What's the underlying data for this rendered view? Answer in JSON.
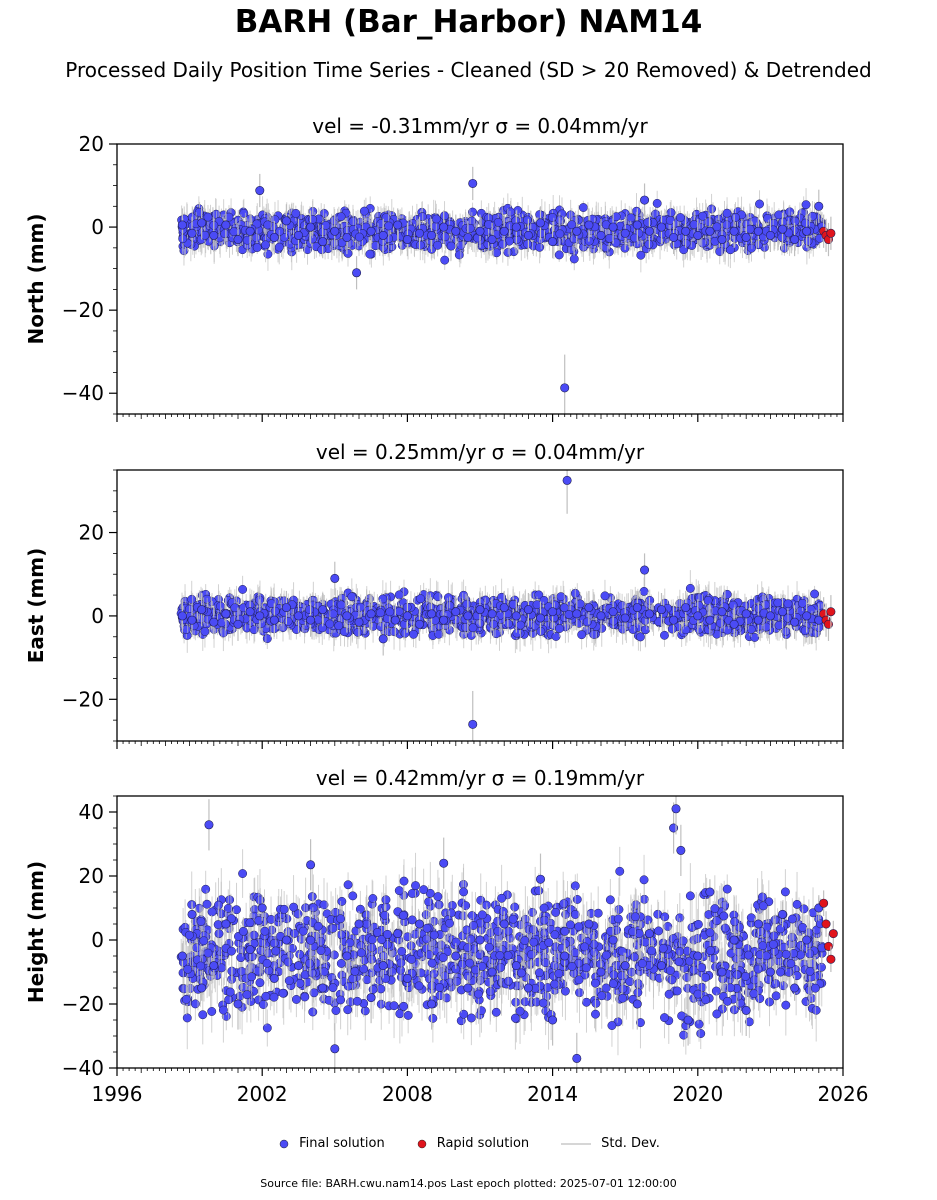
{
  "header": {
    "title": "BARH (Bar_Harbor) NAM14",
    "subtitle": "Processed Daily Position Time Series - Cleaned (SD > 20 Removed) & Detrended"
  },
  "legend": {
    "final": "Final solution",
    "rapid": "Rapid solution",
    "stddev": "Std. Dev."
  },
  "footer": {
    "text": "Source file: BARH.cwu.nam14.pos  Last epoch plotted: 2025-07-01 12:00:00"
  },
  "colors": {
    "final": "#4b4bf5",
    "rapid": "#e0141c",
    "stddev": "#bfbfbf"
  },
  "chart_data": [
    {
      "type": "scatter",
      "title": "vel = -0.31mm/yr   σ = 0.04mm/yr",
      "ylabel": "North (mm)",
      "xlim": [
        1996,
        2026
      ],
      "ylim": [
        -45,
        20
      ],
      "yticks": [
        20,
        0,
        -20,
        -40
      ],
      "series": [
        {
          "name": "Final solution",
          "x": [
            1998.7,
            1999.1,
            1999.5,
            2000.0,
            2000.5,
            2001.0,
            2001.5,
            2001.9,
            2002.5,
            2003.0,
            2003.5,
            2004.0,
            2004.5,
            2005.0,
            2005.5,
            2005.9,
            2006.5,
            2007.0,
            2007.6,
            2008.0,
            2008.5,
            2009.0,
            2009.5,
            2010.0,
            2010.5,
            2010.7,
            2011.0,
            2011.5,
            2012.0,
            2012.5,
            2013.0,
            2013.5,
            2014.0,
            2014.5,
            2015.0,
            2015.5,
            2016.0,
            2016.5,
            2017.0,
            2017.5,
            2017.8,
            2018.0,
            2018.5,
            2019.0,
            2019.5,
            2020.0,
            2020.5,
            2021.0,
            2021.5,
            2022.0,
            2022.5,
            2023.0,
            2023.5,
            2024.0,
            2024.5,
            2025.0
          ],
          "y": [
            0.5,
            -1.5,
            1.0,
            -2.0,
            0.5,
            -3.0,
            -1.0,
            8.8,
            -2.5,
            1.5,
            -2.0,
            0.0,
            -3.5,
            -1.0,
            -2.5,
            -11.0,
            -1.0,
            -2.0,
            0.5,
            -3.0,
            -1.5,
            -2.0,
            0.0,
            -1.0,
            -2.5,
            10.5,
            -1.0,
            -3.0,
            -1.0,
            0.0,
            -2.0,
            1.0,
            -3.5,
            -38.7,
            -1.0,
            0.5,
            -2.0,
            0.0,
            -1.5,
            0.5,
            6.5,
            -1.0,
            0.0,
            -2.5,
            -1.0,
            -2.0,
            -1.0,
            -3.0,
            -1.0,
            -2.5,
            -1.0,
            -2.0,
            -0.5,
            -3.0,
            -1.0,
            5.0
          ]
        },
        {
          "name": "Rapid solution",
          "x": [
            2025.2,
            2025.3,
            2025.4,
            2025.5
          ],
          "y": [
            -1.0,
            -2.0,
            -3.0,
            -1.5
          ]
        }
      ]
    },
    {
      "type": "scatter",
      "title": "vel = 0.25mm/yr   σ = 0.04mm/yr",
      "ylabel": "East (mm)",
      "xlim": [
        1996,
        2026
      ],
      "ylim": [
        -30,
        35
      ],
      "yticks": [
        20,
        0,
        -20
      ],
      "series": [
        {
          "name": "Final solution",
          "x": [
            1998.7,
            1999.1,
            1999.5,
            2000.0,
            2000.5,
            2001.0,
            2001.5,
            2001.9,
            2002.5,
            2003.0,
            2003.5,
            2004.0,
            2004.5,
            2005.0,
            2005.5,
            2006.0,
            2006.5,
            2007.0,
            2007.5,
            2008.0,
            2008.5,
            2009.0,
            2009.5,
            2010.0,
            2010.5,
            2010.7,
            2011.0,
            2011.5,
            2012.0,
            2012.5,
            2013.0,
            2013.5,
            2014.0,
            2014.6,
            2015.0,
            2015.5,
            2016.0,
            2016.5,
            2017.0,
            2017.5,
            2017.8,
            2018.0,
            2018.5,
            2019.0,
            2019.5,
            2020.0,
            2020.5,
            2021.0,
            2021.5,
            2022.0,
            2022.5,
            2023.0,
            2023.5,
            2024.0,
            2024.5,
            2025.0
          ],
          "y": [
            0.0,
            -1.0,
            1.5,
            -1.5,
            0.5,
            -2.0,
            1.0,
            0.0,
            -1.0,
            2.0,
            0.0,
            -1.0,
            1.5,
            9.0,
            0.0,
            -1.5,
            0.5,
            -5.5,
            -1.0,
            0.0,
            -2.0,
            0.5,
            -1.0,
            1.0,
            0.0,
            -26.0,
            1.5,
            0.5,
            2.0,
            0.0,
            1.5,
            -0.5,
            1.0,
            32.5,
            0.5,
            2.0,
            0.0,
            1.0,
            -0.5,
            2.0,
            11.0,
            0.5,
            1.5,
            -1.0,
            2.0,
            0.0,
            -1.0,
            1.0,
            -2.0,
            0.5,
            -1.0,
            0.0,
            1.0,
            -1.5,
            0.0,
            -1.0
          ]
        },
        {
          "name": "Rapid solution",
          "x": [
            2025.2,
            2025.3,
            2025.4,
            2025.5
          ],
          "y": [
            0.5,
            -1.0,
            -2.0,
            1.0
          ]
        }
      ]
    },
    {
      "type": "scatter",
      "title": "vel = 0.42mm/yr   σ = 0.19mm/yr",
      "ylabel": "Height (mm)",
      "xlabel": "",
      "xlim": [
        1996,
        2026
      ],
      "ylim": [
        -40,
        45
      ],
      "yticks": [
        40,
        20,
        0,
        -20,
        -40
      ],
      "xticks": [
        1996,
        2002,
        2008,
        2014,
        2020,
        2026
      ],
      "series": [
        {
          "name": "Final solution",
          "x": [
            1998.7,
            1999.1,
            1999.5,
            1999.8,
            2000.0,
            2000.5,
            2001.0,
            2001.5,
            2002.0,
            2002.5,
            2003.0,
            2003.5,
            2004.0,
            2004.5,
            2005.0,
            2005.5,
            2006.0,
            2006.5,
            2007.0,
            2007.6,
            2008.0,
            2008.5,
            2009.0,
            2009.5,
            2010.0,
            2010.5,
            2011.0,
            2011.5,
            2012.0,
            2012.5,
            2013.0,
            2013.5,
            2014.0,
            2014.5,
            2015.0,
            2015.5,
            2016.0,
            2016.5,
            2017.0,
            2017.5,
            2018.0,
            2018.5,
            2019.0,
            2019.1,
            2019.3,
            2019.6,
            2020.0,
            2020.5,
            2021.0,
            2021.5,
            2022.0,
            2022.5,
            2023.0,
            2023.5,
            2024.0,
            2024.5,
            2025.0
          ],
          "y": [
            -5.0,
            8.0,
            -15.0,
            36.0,
            -8.0,
            5.0,
            -20.0,
            -3.0,
            10.0,
            -12.0,
            0.0,
            -8.0,
            23.5,
            -15.0,
            -34.0,
            -5.0,
            5.0,
            -18.0,
            -8.0,
            2.0,
            -12.0,
            5.0,
            -20.0,
            24.0,
            -5.0,
            -15.0,
            0.0,
            -10.0,
            5.0,
            -8.0,
            -15.0,
            19.0,
            -25.0,
            -5.0,
            -37.0,
            5.0,
            -10.0,
            0.0,
            -8.0,
            -20.0,
            2.0,
            -8.0,
            35.0,
            41.0,
            28.0,
            -25.0,
            -5.0,
            15.0,
            -10.0,
            0.0,
            -22.0,
            5.0,
            -10.0,
            8.0,
            -15.0,
            0.0,
            10.0
          ]
        },
        {
          "name": "Rapid solution",
          "x": [
            2025.2,
            2025.3,
            2025.4,
            2025.5,
            2025.6
          ],
          "y": [
            11.5,
            5.0,
            -2.0,
            -6.0,
            2.0
          ]
        }
      ]
    }
  ]
}
